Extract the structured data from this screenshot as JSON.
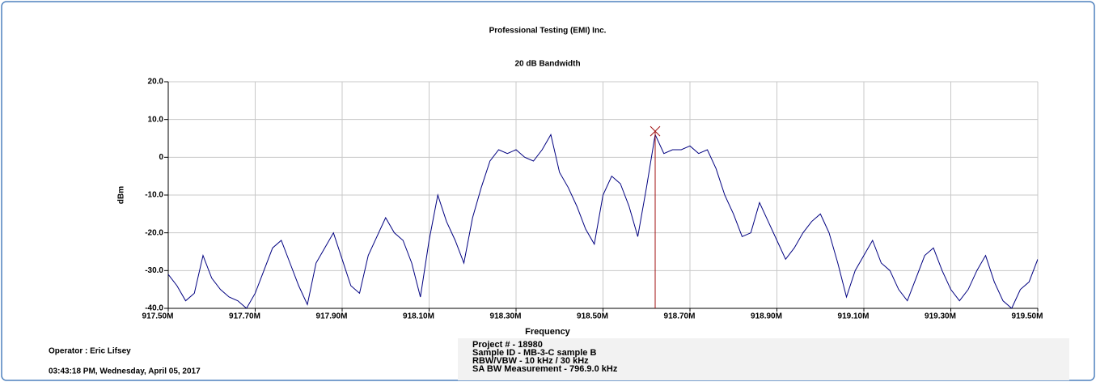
{
  "chart_data": {
    "type": "line",
    "title": "Professional Testing (EMI) Inc.",
    "subtitle": "20 dB Bandwidth",
    "xlabel": "Frequency",
    "ylabel": "dBm",
    "color": "#000080",
    "grid": true,
    "xlim": [
      917.5,
      919.5
    ],
    "ylim": [
      -40,
      20
    ],
    "xticks": [
      {
        "value": 917.5,
        "label": "917.50M"
      },
      {
        "value": 917.7,
        "label": "917.70M"
      },
      {
        "value": 917.9,
        "label": "917.90M"
      },
      {
        "value": 918.1,
        "label": "918.10M"
      },
      {
        "value": 918.3,
        "label": "918.30M"
      },
      {
        "value": 918.5,
        "label": "918.50M"
      },
      {
        "value": 918.7,
        "label": "918.70M"
      },
      {
        "value": 918.9,
        "label": "918.90M"
      },
      {
        "value": 919.1,
        "label": "919.10M"
      },
      {
        "value": 919.3,
        "label": "919.30M"
      },
      {
        "value": 919.5,
        "label": "919.50M"
      }
    ],
    "yticks": [
      {
        "value": 20,
        "label": "20.0"
      },
      {
        "value": 10,
        "label": "10.0"
      },
      0,
      {
        "value": -10,
        "label": "-10.0"
      },
      {
        "value": -20,
        "label": "-20.0"
      },
      {
        "value": -30,
        "label": "-30.0"
      },
      {
        "value": -40,
        "label": "-40.0"
      }
    ],
    "x": [
      917.5,
      917.52,
      917.54,
      917.56,
      917.58,
      917.6,
      917.62,
      917.64,
      917.66,
      917.68,
      917.7,
      917.72,
      917.74,
      917.76,
      917.78,
      917.8,
      917.82,
      917.84,
      917.86,
      917.88,
      917.9,
      917.92,
      917.94,
      917.96,
      917.98,
      918.0,
      918.02,
      918.04,
      918.06,
      918.08,
      918.1,
      918.12,
      918.14,
      918.16,
      918.18,
      918.2,
      918.22,
      918.24,
      918.26,
      918.28,
      918.3,
      918.32,
      918.34,
      918.36,
      918.38,
      918.4,
      918.42,
      918.44,
      918.46,
      918.48,
      918.5,
      918.52,
      918.54,
      918.56,
      918.58,
      918.6,
      918.62,
      918.64,
      918.66,
      918.68,
      918.7,
      918.72,
      918.74,
      918.76,
      918.78,
      918.8,
      918.82,
      918.84,
      918.86,
      918.88,
      918.9,
      918.92,
      918.94,
      918.96,
      918.98,
      919.0,
      919.02,
      919.04,
      919.06,
      919.08,
      919.1,
      919.12,
      919.14,
      919.16,
      919.18,
      919.2,
      919.22,
      919.24,
      919.26,
      919.28,
      919.3,
      919.32,
      919.34,
      919.36,
      919.38,
      919.4,
      919.42,
      919.44,
      919.46,
      919.48,
      919.5
    ],
    "values": [
      -31,
      -34,
      -38,
      -36,
      -26,
      -32,
      -35,
      -37,
      -38,
      -40,
      -36,
      -30,
      -24,
      -22,
      -28,
      -34,
      -39,
      -28,
      -24,
      -20,
      -27,
      -34,
      -36,
      -26,
      -21,
      -16,
      -20,
      -22,
      -28,
      -37,
      -22,
      -10,
      -17,
      -22,
      -28,
      -16,
      -8,
      -1,
      2,
      1,
      2,
      0,
      -1,
      2,
      6,
      -4,
      -8,
      -13,
      -19,
      -23,
      -10,
      -5,
      -7,
      -13,
      -21,
      -8,
      6,
      1,
      2,
      2,
      3,
      1,
      2,
      -3,
      -10,
      -15,
      -21,
      -20,
      -12,
      -17,
      -22,
      -27,
      -24,
      -20,
      -17,
      -15,
      -20,
      -28,
      -37,
      -30,
      -26,
      -22,
      -28,
      -30,
      -35,
      -38,
      -32,
      -26,
      -24,
      -30,
      -35,
      -38,
      -35,
      -30,
      -26,
      -33,
      -38,
      -40,
      -35,
      -33,
      -27
    ],
    "marker": {
      "x": 918.62,
      "y": 6.9,
      "color": "#a01010"
    }
  },
  "footer": {
    "operator": "Operator : Eric Lifsey",
    "timestamp": "03:43:18 PM, Wednesday, April 05, 2017",
    "project": [
      "Project # - 18980",
      "Sample ID - MB-3-C sample B",
      "RBW/VBW - 10 kHz / 30 kHz",
      "SA BW Measurement - 796.9.0 kHz"
    ]
  }
}
